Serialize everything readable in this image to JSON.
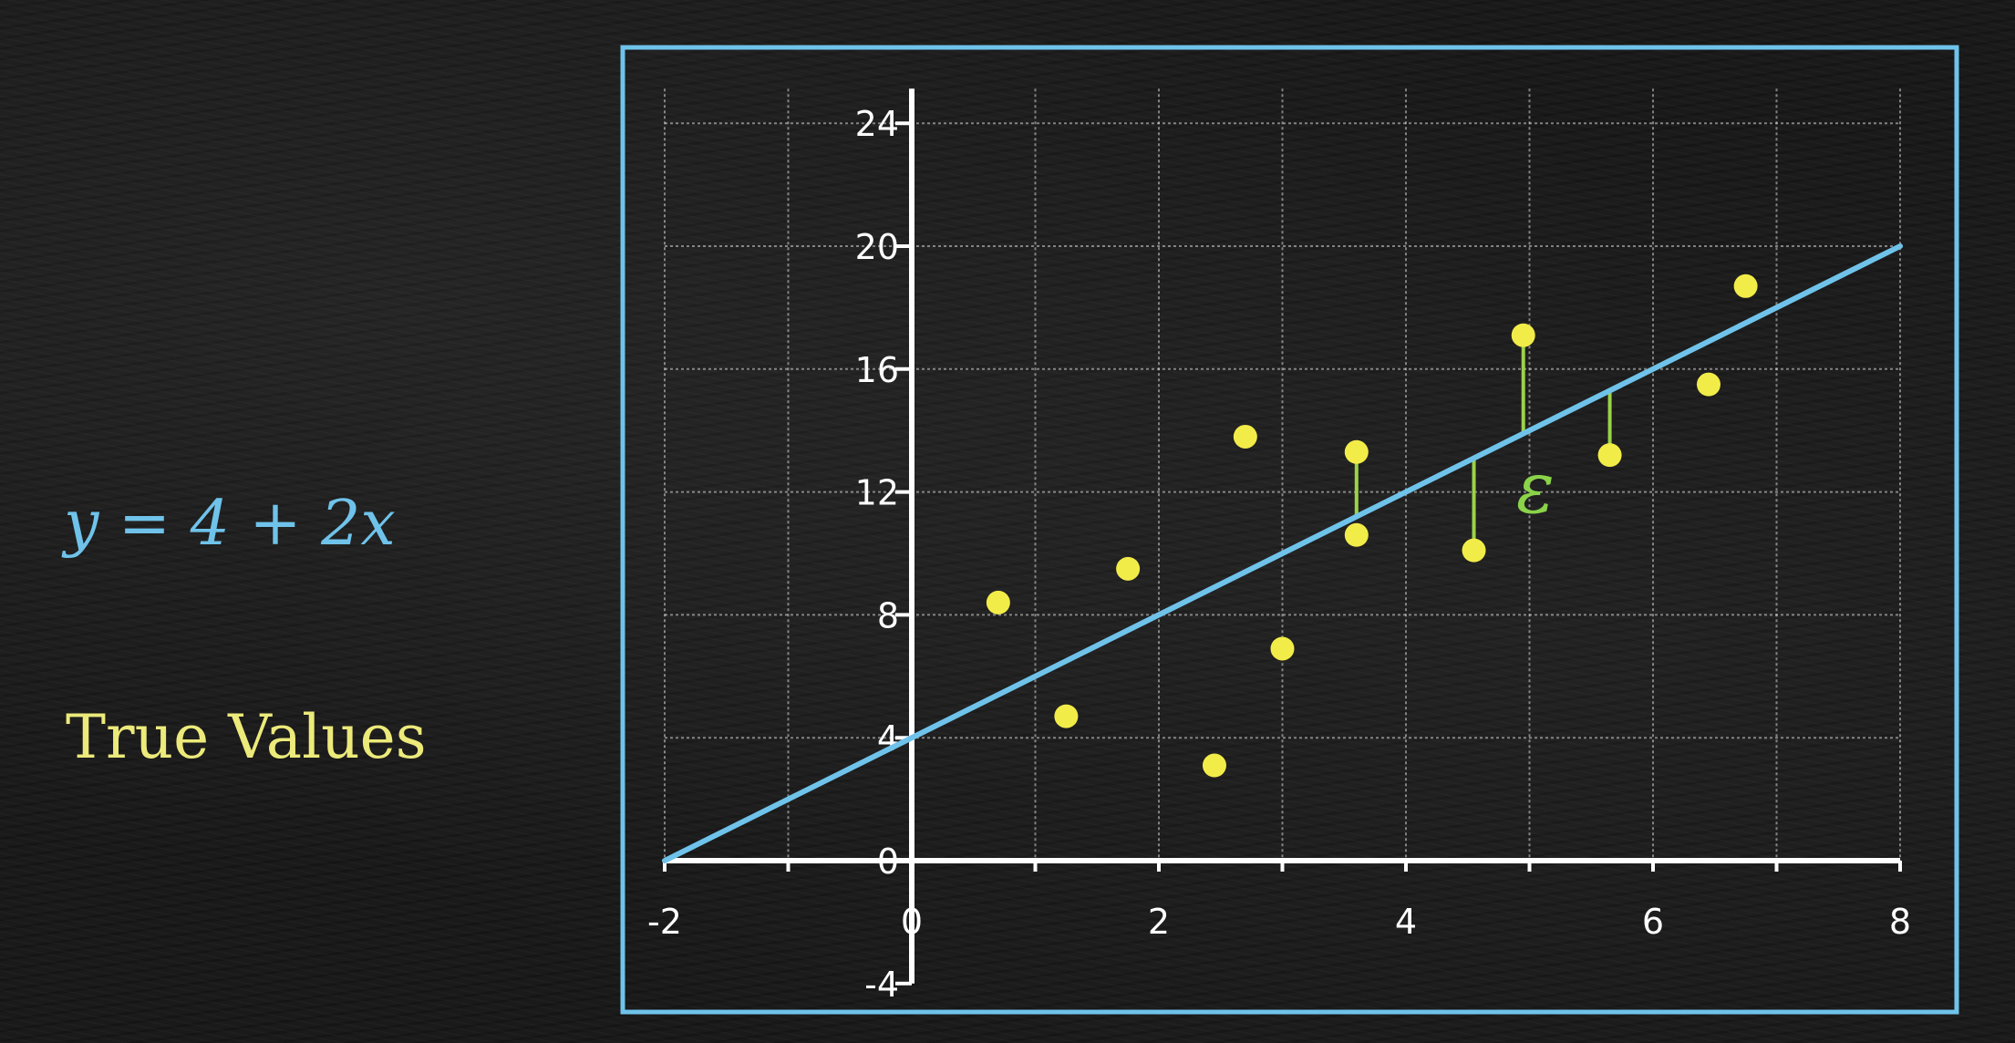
{
  "equation": "y = 4 + 2x",
  "legend_label": "True Values",
  "residual_symbol": "ε",
  "colors": {
    "line": "#6fc3ea",
    "points": "#f2ec48",
    "residuals": "#9bd24a",
    "frame": "#6fc3ea",
    "axes": "#ffffff"
  },
  "chart_data": {
    "type": "scatter",
    "xlim": [
      -2,
      8
    ],
    "ylim": [
      -4,
      24
    ],
    "x_ticks": [
      "-2",
      "0",
      "2",
      "4",
      "6",
      "8"
    ],
    "y_ticks": [
      "-4",
      "0",
      "4",
      "8",
      "12",
      "16",
      "20",
      "24"
    ],
    "grid": true,
    "regression_line": {
      "intercept": 4,
      "slope": 2,
      "x_range": [
        -2,
        8
      ]
    },
    "points": [
      {
        "x": 0.7,
        "y": 8.4
      },
      {
        "x": 1.25,
        "y": 4.7
      },
      {
        "x": 1.75,
        "y": 9.5
      },
      {
        "x": 2.45,
        "y": 3.1
      },
      {
        "x": 2.7,
        "y": 13.8
      },
      {
        "x": 3.0,
        "y": 6.9
      },
      {
        "x": 3.6,
        "y": 13.3
      },
      {
        "x": 3.6,
        "y": 10.6
      },
      {
        "x": 4.55,
        "y": 10.1
      },
      {
        "x": 4.95,
        "y": 17.1
      },
      {
        "x": 5.65,
        "y": 13.2
      },
      {
        "x": 6.45,
        "y": 15.5
      },
      {
        "x": 6.75,
        "y": 18.7
      }
    ],
    "residuals": [
      {
        "x": 3.6,
        "y_from": 13.3,
        "y_to": 11.2
      },
      {
        "x": 4.55,
        "y_from": 10.1,
        "y_to": 13.1
      },
      {
        "x": 4.95,
        "y_from": 17.1,
        "y_to": 13.9
      },
      {
        "x": 5.65,
        "y_from": 13.2,
        "y_to": 15.3
      }
    ]
  }
}
